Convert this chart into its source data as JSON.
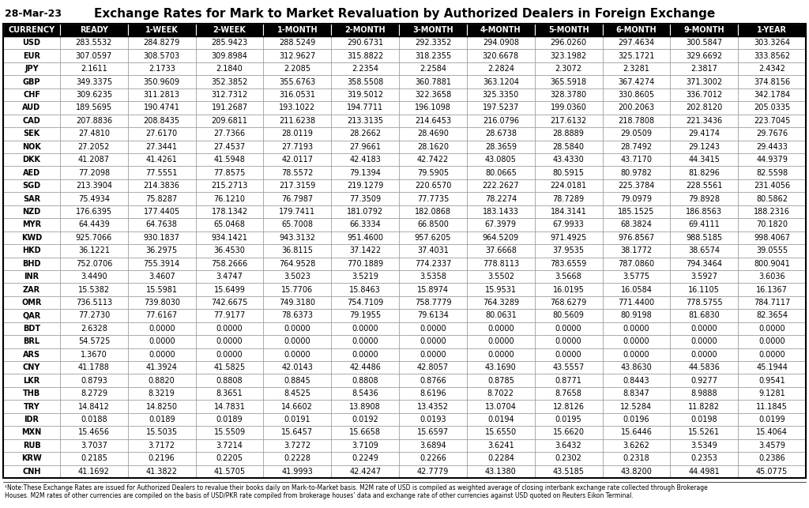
{
  "date": "28-Mar-23",
  "title": "Exchange Rates for Mark to Market Revaluation by Authorized Dealers in Foreign Exchange",
  "columns": [
    "CURRENCY",
    "READY",
    "1-WEEK",
    "2-WEEK",
    "1-MONTH",
    "2-MONTH",
    "3-MONTH",
    "4-MONTH",
    "5-MONTH",
    "6-MONTH",
    "9-MONTH",
    "1-YEAR"
  ],
  "rows": [
    [
      "USD",
      "283.5532",
      "284.8279",
      "285.9423",
      "288.5249",
      "290.6731",
      "292.3352",
      "294.0908",
      "296.0260",
      "297.4634",
      "300.5847",
      "303.3264"
    ],
    [
      "EUR",
      "307.0597",
      "308.5703",
      "309.8984",
      "312.9627",
      "315.8822",
      "318.2355",
      "320.6678",
      "323.1982",
      "325.1721",
      "329.6692",
      "333.8562"
    ],
    [
      "JPY",
      "2.1611",
      "2.1733",
      "2.1840",
      "2.2085",
      "2.2354",
      "2.2584",
      "2.2824",
      "2.3072",
      "2.3281",
      "2.3817",
      "2.4342"
    ],
    [
      "GBP",
      "349.3375",
      "350.9609",
      "352.3852",
      "355.6763",
      "358.5508",
      "360.7881",
      "363.1204",
      "365.5918",
      "367.4274",
      "371.3002",
      "374.8156"
    ],
    [
      "CHF",
      "309.6235",
      "311.2813",
      "312.7312",
      "316.0531",
      "319.5012",
      "322.3658",
      "325.3350",
      "328.3780",
      "330.8605",
      "336.7012",
      "342.1784"
    ],
    [
      "AUD",
      "189.5695",
      "190.4741",
      "191.2687",
      "193.1022",
      "194.7711",
      "196.1098",
      "197.5237",
      "199.0360",
      "200.2063",
      "202.8120",
      "205.0335"
    ],
    [
      "CAD",
      "207.8836",
      "208.8435",
      "209.6811",
      "211.6238",
      "213.3135",
      "214.6453",
      "216.0796",
      "217.6132",
      "218.7808",
      "221.3436",
      "223.7045"
    ],
    [
      "SEK",
      "27.4810",
      "27.6170",
      "27.7366",
      "28.0119",
      "28.2662",
      "28.4690",
      "28.6738",
      "28.8889",
      "29.0509",
      "29.4174",
      "29.7676"
    ],
    [
      "NOK",
      "27.2052",
      "27.3441",
      "27.4537",
      "27.7193",
      "27.9661",
      "28.1620",
      "28.3659",
      "28.5840",
      "28.7492",
      "29.1243",
      "29.4433"
    ],
    [
      "DKK",
      "41.2087",
      "41.4261",
      "41.5948",
      "42.0117",
      "42.4183",
      "42.7422",
      "43.0805",
      "43.4330",
      "43.7170",
      "44.3415",
      "44.9379"
    ],
    [
      "AED",
      "77.2098",
      "77.5551",
      "77.8575",
      "78.5572",
      "79.1394",
      "79.5905",
      "80.0665",
      "80.5915",
      "80.9782",
      "81.8296",
      "82.5598"
    ],
    [
      "SGD",
      "213.3904",
      "214.3836",
      "215.2713",
      "217.3159",
      "219.1279",
      "220.6570",
      "222.2627",
      "224.0181",
      "225.3784",
      "228.5561",
      "231.4056"
    ],
    [
      "SAR",
      "75.4934",
      "75.8287",
      "76.1210",
      "76.7987",
      "77.3509",
      "77.7735",
      "78.2274",
      "78.7289",
      "79.0979",
      "79.8928",
      "80.5862"
    ],
    [
      "NZD",
      "176.6395",
      "177.4405",
      "178.1342",
      "179.7411",
      "181.0792",
      "182.0868",
      "183.1433",
      "184.3141",
      "185.1525",
      "186.8563",
      "188.2316"
    ],
    [
      "MYR",
      "64.4439",
      "64.7638",
      "65.0468",
      "65.7008",
      "66.3334",
      "66.8500",
      "67.3979",
      "67.9933",
      "68.3824",
      "69.4111",
      "70.1820"
    ],
    [
      "KWD",
      "925.7066",
      "930.1837",
      "934.1421",
      "943.3132",
      "951.4600",
      "957.6205",
      "964.5209",
      "971.4925",
      "976.8567",
      "988.5185",
      "998.4067"
    ],
    [
      "HKD",
      "36.1221",
      "36.2975",
      "36.4530",
      "36.8115",
      "37.1422",
      "37.4031",
      "37.6668",
      "37.9535",
      "38.1772",
      "38.6574",
      "39.0555"
    ],
    [
      "BHD",
      "752.0706",
      "755.3914",
      "758.2666",
      "764.9528",
      "770.1889",
      "774.2337",
      "778.8113",
      "783.6559",
      "787.0860",
      "794.3464",
      "800.9041"
    ],
    [
      "INR",
      "3.4490",
      "3.4607",
      "3.4747",
      "3.5023",
      "3.5219",
      "3.5358",
      "3.5502",
      "3.5668",
      "3.5775",
      "3.5927",
      "3.6036"
    ],
    [
      "ZAR",
      "15.5382",
      "15.5981",
      "15.6499",
      "15.7706",
      "15.8463",
      "15.8974",
      "15.9531",
      "16.0195",
      "16.0584",
      "16.1105",
      "16.1367"
    ],
    [
      "OMR",
      "736.5113",
      "739.8030",
      "742.6675",
      "749.3180",
      "754.7109",
      "758.7779",
      "764.3289",
      "768.6279",
      "771.4400",
      "778.5755",
      "784.7117"
    ],
    [
      "QAR",
      "77.2730",
      "77.6167",
      "77.9177",
      "78.6373",
      "79.1955",
      "79.6134",
      "80.0631",
      "80.5609",
      "80.9198",
      "81.6830",
      "82.3654"
    ],
    [
      "BDT",
      "2.6328",
      "0.0000",
      "0.0000",
      "0.0000",
      "0.0000",
      "0.0000",
      "0.0000",
      "0.0000",
      "0.0000",
      "0.0000",
      "0.0000"
    ],
    [
      "BRL",
      "54.5725",
      "0.0000",
      "0.0000",
      "0.0000",
      "0.0000",
      "0.0000",
      "0.0000",
      "0.0000",
      "0.0000",
      "0.0000",
      "0.0000"
    ],
    [
      "ARS",
      "1.3670",
      "0.0000",
      "0.0000",
      "0.0000",
      "0.0000",
      "0.0000",
      "0.0000",
      "0.0000",
      "0.0000",
      "0.0000",
      "0.0000"
    ],
    [
      "CNY",
      "41.1788",
      "41.3924",
      "41.5825",
      "42.0143",
      "42.4486",
      "42.8057",
      "43.1690",
      "43.5557",
      "43.8630",
      "44.5836",
      "45.1944"
    ],
    [
      "LKR",
      "0.8793",
      "0.8820",
      "0.8808",
      "0.8845",
      "0.8808",
      "0.8766",
      "0.8785",
      "0.8771",
      "0.8443",
      "0.9277",
      "0.9541"
    ],
    [
      "THB",
      "8.2729",
      "8.3219",
      "8.3651",
      "8.4525",
      "8.5436",
      "8.6196",
      "8.7022",
      "8.7658",
      "8.8347",
      "8.9888",
      "9.1281"
    ],
    [
      "TRY",
      "14.8412",
      "14.8250",
      "14.7831",
      "14.6602",
      "13.8908",
      "13.4352",
      "13.0704",
      "12.8126",
      "12.5284",
      "11.8282",
      "11.1845"
    ],
    [
      "IDR",
      "0.0188",
      "0.0189",
      "0.0189",
      "0.0191",
      "0.0192",
      "0.0193",
      "0.0194",
      "0.0195",
      "0.0196",
      "0.0198",
      "0.0199"
    ],
    [
      "MXN",
      "15.4656",
      "15.5035",
      "15.5509",
      "15.6457",
      "15.6658",
      "15.6597",
      "15.6550",
      "15.6620",
      "15.6446",
      "15.5261",
      "15.4064"
    ],
    [
      "RUB",
      "3.7037",
      "3.7172",
      "3.7214",
      "3.7272",
      "3.7109",
      "3.6894",
      "3.6241",
      "3.6432",
      "3.6262",
      "3.5349",
      "3.4579"
    ],
    [
      "KRW",
      "0.2185",
      "0.2196",
      "0.2205",
      "0.2228",
      "0.2249",
      "0.2266",
      "0.2284",
      "0.2302",
      "0.2318",
      "0.2353",
      "0.2386"
    ],
    [
      "CNH",
      "41.1692",
      "41.3822",
      "41.5705",
      "41.9993",
      "42.4247",
      "42.7779",
      "43.1380",
      "43.5185",
      "43.8200",
      "44.4981",
      "45.0775"
    ]
  ],
  "note_line1": "¹Note:These Exchange Rates are issued for Authorized Dealers to revalue their books daily on Mark-to-Market basis. M2M rate of USD is compiled as weighted average of closing interbank exchange rate collected through Brokerage",
  "note_line2": "Houses. M2M rates of other currencies are compiled on the basis of USD/PKR rate compiled from brokerage houses’ data and exchange rate of other currencies against USD quoted on Reuters Eikon Terminal.",
  "header_bg": "#000000",
  "header_fg": "#ffffff",
  "border_color": "#000000"
}
